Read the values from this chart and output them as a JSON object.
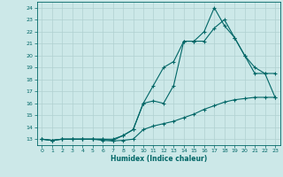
{
  "xlabel": "Humidex (Indice chaleur)",
  "bg_color": "#cce8e8",
  "grid_color": "#b0d0d0",
  "line_color": "#006666",
  "xlim": [
    -0.5,
    23.5
  ],
  "ylim": [
    12.5,
    24.5
  ],
  "xticks": [
    0,
    1,
    2,
    3,
    4,
    5,
    6,
    7,
    8,
    9,
    10,
    11,
    12,
    13,
    14,
    15,
    16,
    17,
    18,
    19,
    20,
    21,
    22,
    23
  ],
  "yticks": [
    13,
    14,
    15,
    16,
    17,
    18,
    19,
    20,
    21,
    22,
    23,
    24
  ],
  "line1_x": [
    0,
    1,
    2,
    3,
    4,
    5,
    6,
    7,
    8,
    9,
    10,
    11,
    12,
    13,
    14,
    15,
    16,
    17,
    18,
    19,
    20,
    21,
    22,
    23
  ],
  "line1_y": [
    13,
    12.9,
    13.0,
    13.0,
    13.0,
    13.0,
    12.9,
    12.85,
    12.9,
    13.0,
    13.8,
    14.1,
    14.3,
    14.5,
    14.8,
    15.1,
    15.5,
    15.8,
    16.1,
    16.3,
    16.4,
    16.5,
    16.5,
    16.5
  ],
  "line2_x": [
    0,
    1,
    2,
    3,
    4,
    5,
    6,
    7,
    8,
    9,
    10,
    11,
    12,
    13,
    14,
    15,
    16,
    17,
    18,
    19,
    20,
    21,
    22,
    23
  ],
  "line2_y": [
    13,
    12.9,
    13.0,
    13.0,
    13.0,
    13.0,
    13.0,
    13.0,
    13.3,
    13.8,
    16.0,
    17.5,
    19.0,
    19.5,
    21.2,
    21.2,
    21.2,
    22.3,
    23.0,
    21.5,
    20.0,
    18.5,
    18.5,
    16.5
  ],
  "line3_x": [
    0,
    1,
    2,
    3,
    4,
    5,
    6,
    7,
    8,
    9,
    10,
    11,
    12,
    13,
    14,
    15,
    16,
    17,
    18,
    19,
    20,
    21,
    22,
    23
  ],
  "line3_y": [
    13,
    12.9,
    13.0,
    13.0,
    13.0,
    13.0,
    13.0,
    12.9,
    13.3,
    13.8,
    16.0,
    16.2,
    16.0,
    17.5,
    21.2,
    21.2,
    22.0,
    24.0,
    22.5,
    21.5,
    20.0,
    19.0,
    18.5,
    18.5
  ]
}
